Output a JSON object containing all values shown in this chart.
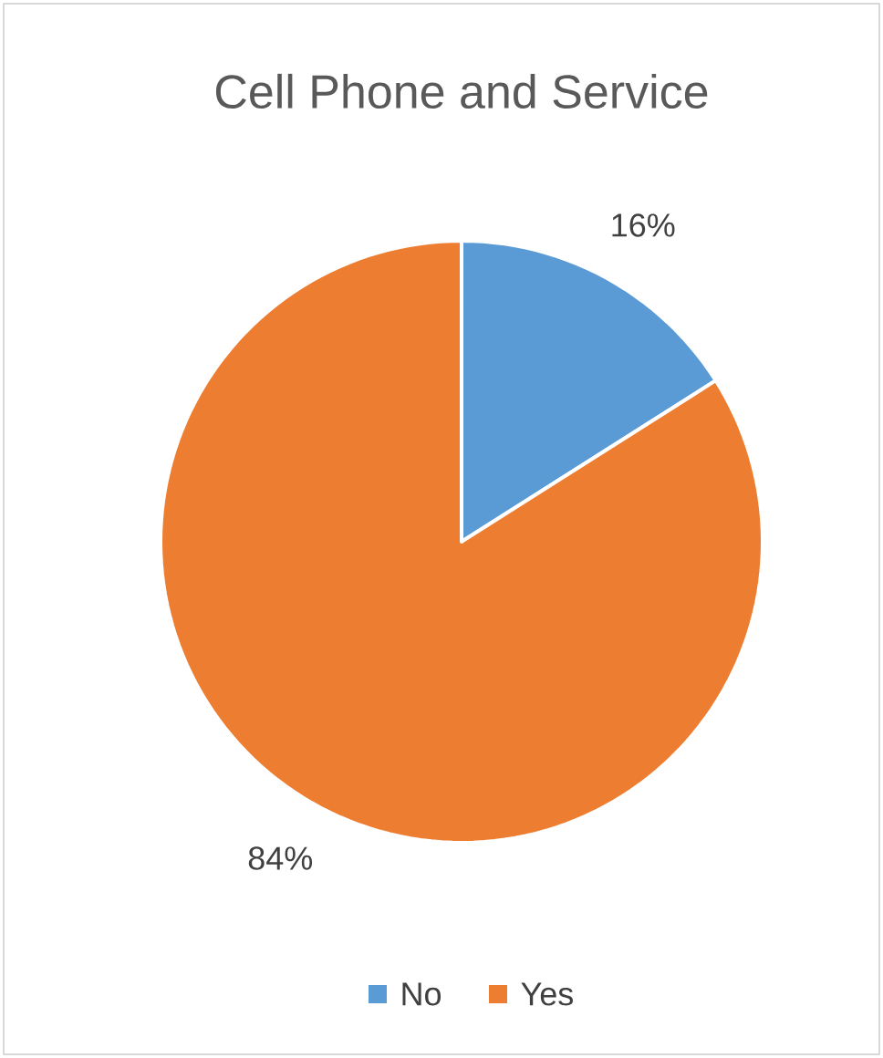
{
  "chart_data": {
    "type": "pie",
    "title": "Cell Phone and Service",
    "categories": [
      "No",
      "Yes"
    ],
    "values": [
      16,
      84
    ],
    "colors": [
      "#5b9bd5",
      "#ed7d31"
    ],
    "value_labels": [
      "16%",
      "84%"
    ],
    "legend": "bottom"
  }
}
